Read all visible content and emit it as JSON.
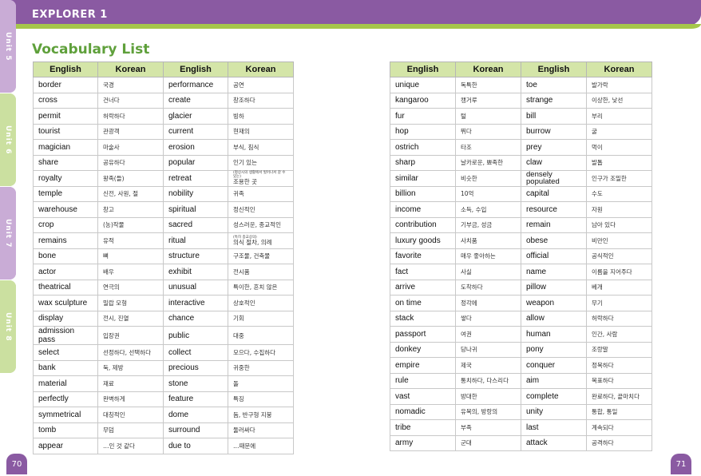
{
  "header": {
    "title": "EXPLORER 1"
  },
  "heading": "Vocabulary List",
  "columns": {
    "english": "English",
    "korean": "Korean"
  },
  "left_page": {
    "page_number": "70",
    "units": [
      "Unit 1",
      "Unit 2",
      "Unit 3",
      "Unit 4"
    ],
    "rows": [
      {
        "en1": "border",
        "ko1": "국경",
        "en2": "performance",
        "ko2": "공연"
      },
      {
        "en1": "cross",
        "ko1": "건너다",
        "en2": "create",
        "ko2": "창조하다"
      },
      {
        "en1": "permit",
        "ko1": "허락하다",
        "en2": "glacier",
        "ko2": "빙하"
      },
      {
        "en1": "tourist",
        "ko1": "관광객",
        "en2": "current",
        "ko2": "현재의"
      },
      {
        "en1": "magician",
        "ko1": "마술사",
        "en2": "erosion",
        "ko2": "부식, 침식"
      },
      {
        "en1": "share",
        "ko1": "공유하다",
        "en2": "popular",
        "ko2": "인기 있는"
      },
      {
        "en1": "royalty",
        "ko1": "왕족(들)",
        "en2": "retreat",
        "ko2_note": "(평상시의 생활에서 벗어나서 갈 수 있는)",
        "ko2": "조용한 곳"
      },
      {
        "en1": "temple",
        "ko1": "신전, 사원, 절",
        "en2": "nobility",
        "ko2": "귀족"
      },
      {
        "en1": "warehouse",
        "ko1": "창고",
        "en2": "spiritual",
        "ko2": "정신적인"
      },
      {
        "en1": "crop",
        "ko1": "(농)작물",
        "en2": "sacred",
        "ko2": "성스러운, 종교적인"
      },
      {
        "en1": "remains",
        "ko1": "유적",
        "en2": "ritual",
        "ko2_note": "(특히 종교상의)",
        "ko2": "의식 절차, 의례"
      },
      {
        "en1": "bone",
        "ko1": "뼈",
        "en2": "structure",
        "ko2": "구조물, 건축물"
      },
      {
        "en1": "actor",
        "ko1": "배우",
        "en2": "exhibit",
        "ko2": "전시품"
      },
      {
        "en1": "theatrical",
        "ko1": "연극의",
        "en2": "unusual",
        "ko2": "특이한, 흔치 않은"
      },
      {
        "en1": "wax sculpture",
        "ko1": "밀랍 모형",
        "en2": "interactive",
        "ko2": "상호적인"
      },
      {
        "en1": "display",
        "ko1": "전시, 진열",
        "en2": "chance",
        "ko2": "기회"
      },
      {
        "en1": "admission pass",
        "ko1": "입장권",
        "en2": "public",
        "ko2": "대중"
      },
      {
        "en1": "select",
        "ko1": "선정하다, 선택하다",
        "en2": "collect",
        "ko2": "모으다, 수집하다"
      },
      {
        "en1": "bank",
        "ko1": "둑, 제방",
        "en2": "precious",
        "ko2": "귀중한"
      },
      {
        "en1": "material",
        "ko1": "재료",
        "en2": "stone",
        "ko2": "돌"
      },
      {
        "en1": "perfectly",
        "ko1": "완벽하게",
        "en2": "feature",
        "ko2": "특징"
      },
      {
        "en1": "symmetrical",
        "ko1": "대칭적인",
        "en2": "dome",
        "ko2": "돔, 반구형 지붕"
      },
      {
        "en1": "tomb",
        "ko1": "무덤",
        "en2": "surround",
        "ko2": "둘러싸다"
      },
      {
        "en1": "appear",
        "ko1": "…인 것 같다",
        "en2": "due to",
        "ko2": "…때문에"
      }
    ]
  },
  "right_page": {
    "page_number": "71",
    "units": [
      "Unit 5",
      "Unit 6",
      "Unit 7",
      "Unit 8"
    ],
    "rows": [
      {
        "en1": "unique",
        "ko1": "독특한",
        "en2": "toe",
        "ko2": "발가락"
      },
      {
        "en1": "kangaroo",
        "ko1": "캥거루",
        "en2": "strange",
        "ko2": "이상한, 낯선"
      },
      {
        "en1": "fur",
        "ko1": "털",
        "en2": "bill",
        "ko2": "부리"
      },
      {
        "en1": "hop",
        "ko1": "뛰다",
        "en2": "burrow",
        "ko2": "굴"
      },
      {
        "en1": "ostrich",
        "ko1": "타조",
        "en2": "prey",
        "ko2": "먹이"
      },
      {
        "en1": "sharp",
        "ko1": "날카로운, 뾰족한",
        "en2": "claw",
        "ko2": "발톱"
      },
      {
        "en1": "similar",
        "ko1": "비슷한",
        "en2": "densely populated",
        "ko2": "인구가 조밀한"
      },
      {
        "en1": "billion",
        "ko1": "10억",
        "en2": "capital",
        "ko2": "수도"
      },
      {
        "en1": "income",
        "ko1": "소득, 수입",
        "en2": "resource",
        "ko2": "자원"
      },
      {
        "en1": "contribution",
        "ko1": "기부금, 성금",
        "en2": "remain",
        "ko2": "남아 있다"
      },
      {
        "en1": "luxury goods",
        "ko1": "사치품",
        "en2": "obese",
        "ko2": "비만인"
      },
      {
        "en1": "favorite",
        "ko1": "매우 좋아하는",
        "en2": "official",
        "ko2": "공식적인"
      },
      {
        "en1": "fact",
        "ko1": "사실",
        "en2": "name",
        "ko2": "이름을 지어주다"
      },
      {
        "en1": "arrive",
        "ko1": "도착하다",
        "en2": "pillow",
        "ko2": "베개"
      },
      {
        "en1": "on time",
        "ko1": "정각에",
        "en2": "weapon",
        "ko2": "무기"
      },
      {
        "en1": "stack",
        "ko1": "쌓다",
        "en2": "allow",
        "ko2": "허락하다"
      },
      {
        "en1": "passport",
        "ko1": "여권",
        "en2": "human",
        "ko2": "인간, 사람"
      },
      {
        "en1": "donkey",
        "ko1": "당나귀",
        "en2": "pony",
        "ko2": "조랑말"
      },
      {
        "en1": "empire",
        "ko1": "제국",
        "en2": "conquer",
        "ko2": "정복하다"
      },
      {
        "en1": "rule",
        "ko1": "통치하다, 다스리다",
        "en2": "aim",
        "ko2": "목표하다"
      },
      {
        "en1": "vast",
        "ko1": "방대한",
        "en2": "complete",
        "ko2": "완료하다, 끝마치다"
      },
      {
        "en1": "nomadic",
        "ko1": "유목의, 방랑의",
        "en2": "unity",
        "ko2": "통합, 통일"
      },
      {
        "en1": "tribe",
        "ko1": "부족",
        "en2": "last",
        "ko2": "계속되다"
      },
      {
        "en1": "army",
        "ko1": "군대",
        "en2": "attack",
        "ko2": "공격하다"
      }
    ]
  }
}
